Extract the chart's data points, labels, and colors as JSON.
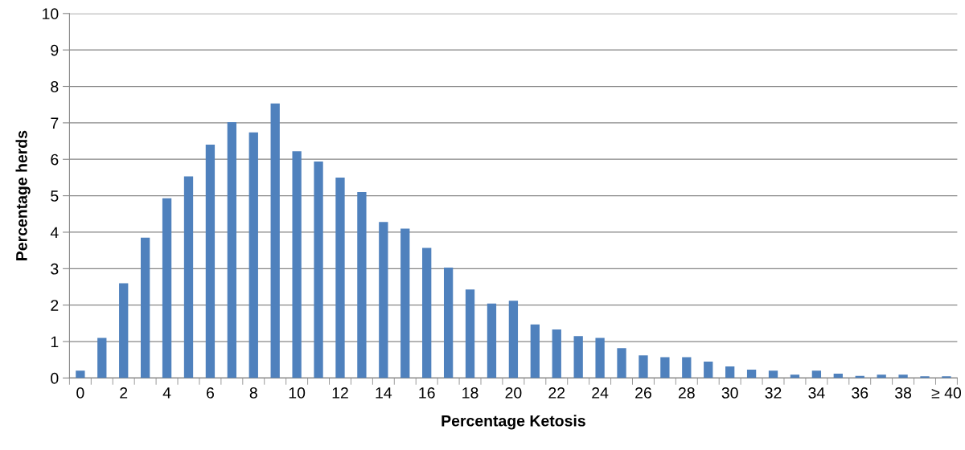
{
  "chart_data": {
    "type": "bar",
    "xlabel": "Percentage Ketosis",
    "ylabel": "Percentage herds",
    "categories": [
      "0",
      null,
      "2",
      null,
      "4",
      null,
      "6",
      null,
      "8",
      null,
      "10",
      null,
      "12",
      null,
      "14",
      null,
      "16",
      null,
      "18",
      null,
      "20",
      null,
      "22",
      null,
      "24",
      null,
      "26",
      null,
      "28",
      null,
      "30",
      null,
      "32",
      null,
      "34",
      null,
      "36",
      null,
      "38",
      null,
      "≥ 40"
    ],
    "values": [
      0.2,
      1.1,
      2.6,
      3.85,
      4.93,
      5.53,
      6.4,
      7.02,
      6.74,
      7.53,
      6.22,
      5.94,
      5.5,
      5.1,
      4.28,
      4.1,
      3.57,
      3.03,
      2.43,
      2.04,
      2.12,
      1.47,
      1.33,
      1.15,
      1.1,
      0.82,
      0.62,
      0.57,
      0.57,
      0.45,
      0.32,
      0.23,
      0.2,
      0.09,
      0.2,
      0.12,
      0.06,
      0.09,
      0.09,
      0.05,
      0.05
    ],
    "color": "#4f81bd",
    "ylim": [
      0,
      10
    ],
    "yticks": [
      0,
      1,
      2,
      3,
      4,
      5,
      6,
      7,
      8,
      9,
      10
    ],
    "grid": "y",
    "legend": false
  }
}
